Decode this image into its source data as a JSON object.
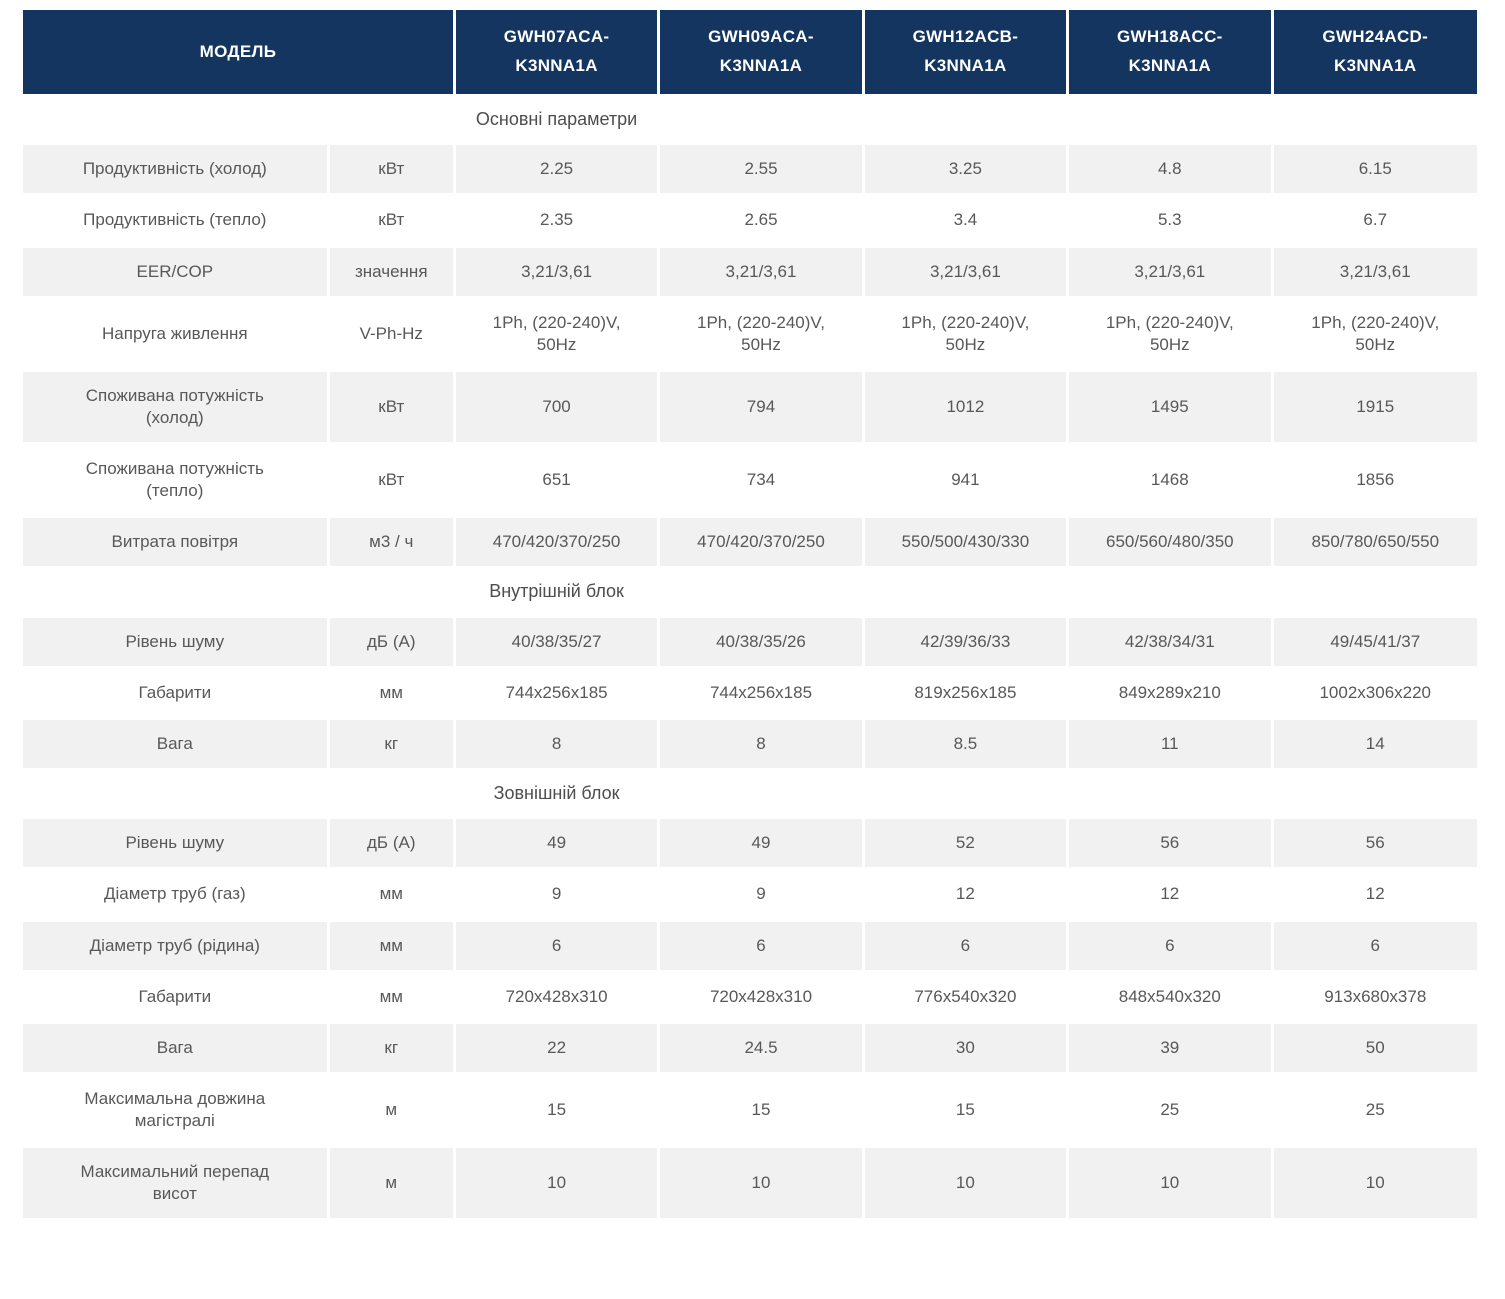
{
  "colors": {
    "header_bg": "#133560",
    "header_text": "#ffffff",
    "stripe_bg": "#f1f1f1",
    "row_bg": "#ffffff",
    "body_text": "#58585a"
  },
  "header": {
    "model_label": "МОДЕЛЬ",
    "models": [
      {
        "line1": "GWH07ACA-",
        "line2": "K3NNA1A"
      },
      {
        "line1": "GWH09ACA-",
        "line2": "K3NNA1A"
      },
      {
        "line1": "GWH12ACB-",
        "line2": "K3NNA1A"
      },
      {
        "line1": "GWH18ACC-",
        "line2": "K3NNA1A"
      },
      {
        "line1": "GWH24ACD-",
        "line2": "K3NNA1A"
      }
    ]
  },
  "sections": [
    {
      "title": "Основні параметри",
      "rows": [
        {
          "label": "Продуктивність (холод)",
          "unit": "кВт",
          "values": [
            "2.25",
            "2.55",
            "3.25",
            "4.8",
            "6.15"
          ]
        },
        {
          "label": "Продуктивність (тепло)",
          "unit": "кВт",
          "values": [
            "2.35",
            "2.65",
            "3.4",
            "5.3",
            "6.7"
          ]
        },
        {
          "label": "EER/COP",
          "unit": "значення",
          "values": [
            "3,21/3,61",
            "3,21/3,61",
            "3,21/3,61",
            "3,21/3,61",
            "3,21/3,61"
          ]
        },
        {
          "label": "Напруга живлення",
          "unit": "V-Ph-Hz",
          "values": [
            "1Ph, (220-240)V, 50Hz",
            "1Ph, (220-240)V, 50Hz",
            "1Ph, (220-240)V, 50Hz",
            "1Ph, (220-240)V, 50Hz",
            "1Ph, (220-240)V, 50Hz"
          ]
        },
        {
          "label": "Споживана потужність (холод)",
          "unit": "кВт",
          "values": [
            "700",
            "794",
            "1012",
            "1495",
            "1915"
          ]
        },
        {
          "label": "Споживана потужність (тепло)",
          "unit": "кВт",
          "values": [
            "651",
            "734",
            "941",
            "1468",
            "1856"
          ]
        },
        {
          "label": "Витрата повітря",
          "unit": "м3 / ч",
          "values": [
            "470/420/370/250",
            "470/420/370/250",
            "550/500/430/330",
            "650/560/480/350",
            "850/780/650/550"
          ]
        }
      ]
    },
    {
      "title": "Внутрішній блок",
      "rows": [
        {
          "label": "Рівень шуму",
          "unit": "дБ (А)",
          "values": [
            "40/38/35/27",
            "40/38/35/26",
            "42/39/36/33",
            "42/38/34/31",
            "49/45/41/37"
          ]
        },
        {
          "label": "Габарити",
          "unit": "мм",
          "values": [
            "744x256x185",
            "744x256x185",
            "819x256x185",
            "849x289x210",
            "1002x306x220"
          ]
        },
        {
          "label": "Вага",
          "unit": "кг",
          "values": [
            "8",
            "8",
            "8.5",
            "11",
            "14"
          ]
        }
      ]
    },
    {
      "title": "Зовнішній блок",
      "rows": [
        {
          "label": "Рівень шуму",
          "unit": "дБ (А)",
          "values": [
            "49",
            "49",
            "52",
            "56",
            "56"
          ]
        },
        {
          "label": "Діаметр труб (газ)",
          "unit": "мм",
          "values": [
            "9",
            "9",
            "12",
            "12",
            "12"
          ]
        },
        {
          "label": "Діаметр труб (рідина)",
          "unit": "мм",
          "values": [
            "6",
            "6",
            "6",
            "6",
            "6"
          ]
        },
        {
          "label": "Габарити",
          "unit": "мм",
          "values": [
            "720x428x310",
            "720x428x310",
            "776x540x320",
            "848x540x320",
            "913x680x378"
          ]
        },
        {
          "label": "Вага",
          "unit": "кг",
          "values": [
            "22",
            "24.5",
            "30",
            "39",
            "50"
          ]
        },
        {
          "label": "Максимальна довжина магістралі",
          "unit": "м",
          "values": [
            "15",
            "15",
            "15",
            "25",
            "25"
          ]
        },
        {
          "label": "Максимальний перепад висот",
          "unit": "м",
          "values": [
            "10",
            "10",
            "10",
            "10",
            "10"
          ]
        }
      ]
    }
  ]
}
